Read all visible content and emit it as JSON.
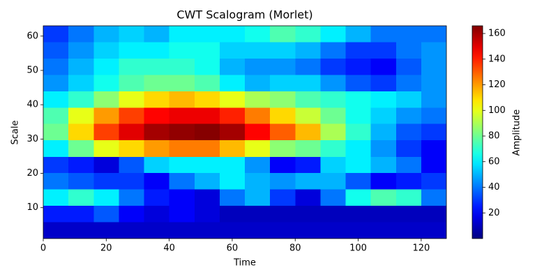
{
  "chart_data": {
    "type": "heatmap",
    "title": "CWT Scalogram (Morlet)",
    "x_label": "Time",
    "y_label": "Scale",
    "colormap": "jet",
    "x": [
      4,
      12,
      20,
      28,
      36,
      44,
      52,
      60,
      68,
      76,
      84,
      92,
      100,
      108,
      116,
      124
    ],
    "y": [
      3.4,
      8.2,
      12.9,
      17.7,
      22.5,
      27.2,
      32,
      36.8,
      41.5,
      46.3,
      51.1,
      55.8,
      60.6
    ],
    "values": [
      [
        12,
        12,
        12,
        12,
        12,
        12,
        12,
        12,
        12,
        12,
        12,
        12,
        12,
        12,
        12,
        12
      ],
      [
        25,
        25,
        35,
        20,
        15,
        20,
        15,
        10,
        10,
        10,
        10,
        10,
        10,
        10,
        10,
        10
      ],
      [
        60,
        70,
        60,
        40,
        25,
        20,
        15,
        40,
        50,
        30,
        15,
        40,
        65,
        75,
        70,
        40
      ],
      [
        40,
        35,
        30,
        30,
        20,
        40,
        50,
        60,
        50,
        45,
        50,
        50,
        35,
        20,
        25,
        30
      ],
      [
        30,
        25,
        15,
        35,
        55,
        60,
        60,
        60,
        45,
        20,
        25,
        55,
        60,
        50,
        40,
        20
      ],
      [
        60,
        80,
        100,
        110,
        120,
        125,
        125,
        115,
        100,
        85,
        80,
        70,
        60,
        45,
        30,
        20
      ],
      [
        80,
        110,
        135,
        150,
        160,
        163,
        165,
        160,
        145,
        130,
        115,
        90,
        70,
        50,
        35,
        30
      ],
      [
        75,
        100,
        120,
        135,
        145,
        148,
        148,
        140,
        125,
        110,
        95,
        80,
        65,
        55,
        45,
        40
      ],
      [
        60,
        70,
        85,
        100,
        110,
        115,
        110,
        100,
        90,
        85,
        75,
        70,
        65,
        60,
        55,
        45
      ],
      [
        45,
        55,
        65,
        75,
        80,
        80,
        75,
        60,
        50,
        55,
        55,
        45,
        35,
        30,
        40,
        45
      ],
      [
        40,
        50,
        60,
        70,
        70,
        70,
        65,
        50,
        45,
        45,
        40,
        30,
        25,
        20,
        35,
        45
      ],
      [
        35,
        45,
        55,
        60,
        60,
        65,
        65,
        55,
        55,
        55,
        50,
        40,
        30,
        30,
        40,
        45
      ],
      [
        30,
        40,
        50,
        55,
        50,
        60,
        60,
        60,
        65,
        75,
        70,
        60,
        50,
        40,
        40,
        40
      ]
    ],
    "xlim": [
      0,
      128
    ],
    "ylim": [
      1,
      63
    ],
    "xticks": [
      0,
      20,
      40,
      60,
      80,
      100,
      120
    ],
    "yticks": [
      10,
      20,
      30,
      40,
      50,
      60
    ],
    "colorbar": {
      "label": "Amplitude",
      "lim": [
        0,
        166
      ],
      "ticks": [
        20,
        40,
        60,
        80,
        100,
        120,
        140,
        160
      ]
    }
  }
}
